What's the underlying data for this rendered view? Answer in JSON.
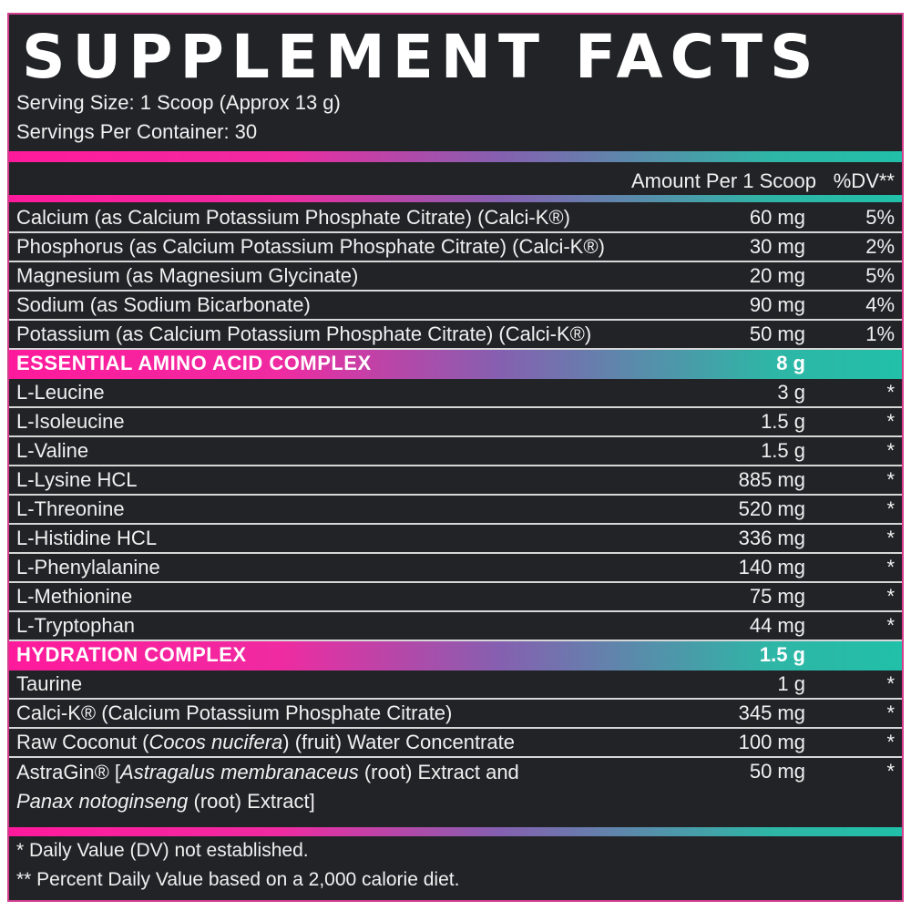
{
  "title": "SUPPLEMENT FACTS",
  "serving_size": "Serving Size: 1 Scoop (Approx 13 g)",
  "servings_per_container": "Servings Per Container: 30",
  "header": {
    "amount": "Amount Per 1 Scoop",
    "dv": "%DV**"
  },
  "rows": [
    {
      "name": "Calcium (as Calcium Potassium Phosphate Citrate) (Calci-K®)",
      "amount": "60 mg",
      "dv": "5%"
    },
    {
      "name": "Phosphorus (as Calcium Potassium Phosphate Citrate) (Calci-K®)",
      "amount": "30 mg",
      "dv": "2%"
    },
    {
      "name": "Magnesium (as Magnesium Glycinate)",
      "amount": "20 mg",
      "dv": "5%"
    },
    {
      "name": "Sodium (as Sodium Bicarbonate)",
      "amount": "90 mg",
      "dv": "4%"
    },
    {
      "name": "Potassium (as Calcium Potassium Phosphate Citrate) (Calci-K®)",
      "amount": "50 mg",
      "dv": "1%"
    },
    {
      "name": "ESSENTIAL AMINO ACID COMPLEX",
      "amount": "8 g",
      "dv": "",
      "section": true
    },
    {
      "name": "L-Leucine",
      "amount": "3 g",
      "dv": "*"
    },
    {
      "name": "L-Isoleucine",
      "amount": "1.5 g",
      "dv": "*"
    },
    {
      "name": "L-Valine",
      "amount": "1.5 g",
      "dv": "*"
    },
    {
      "name": "L-Lysine HCL",
      "amount": "885 mg",
      "dv": "*"
    },
    {
      "name": "L-Threonine",
      "amount": "520 mg",
      "dv": "*"
    },
    {
      "name": "L-Histidine HCL",
      "amount": "336 mg",
      "dv": "*"
    },
    {
      "name": "L-Phenylalanine",
      "amount": "140 mg",
      "dv": "*"
    },
    {
      "name": "L-Methionine",
      "amount": "75 mg",
      "dv": "*"
    },
    {
      "name": "L-Tryptophan",
      "amount": "44 mg",
      "dv": "*"
    },
    {
      "name": "HYDRATION COMPLEX",
      "amount": "1.5 g",
      "dv": "",
      "section": true
    },
    {
      "name": "Taurine",
      "amount": "1 g",
      "dv": "*"
    },
    {
      "name": "Calci-K® (Calcium Potassium Phosphate Citrate)",
      "amount": "345 mg",
      "dv": "*"
    },
    {
      "name_parts": [
        "Raw Coconut (",
        {
          "i": "Cocos nucifera"
        },
        ") (fruit) Water Concentrate"
      ],
      "amount": "100 mg",
      "dv": "*"
    },
    {
      "name_parts": [
        "AstraGin® [",
        {
          "i": "Astragalus membranaceus"
        },
        " (root) Extract and",
        {
          "br": true
        },
        {
          "i": "Panax notoginseng"
        },
        " (root) Extract]"
      ],
      "amount": "50 mg",
      "dv": "*",
      "tall": true
    }
  ],
  "footnotes": [
    "* Daily Value (DV) not established.",
    "** Percent Daily Value based on a 2,000 calorie diet."
  ]
}
